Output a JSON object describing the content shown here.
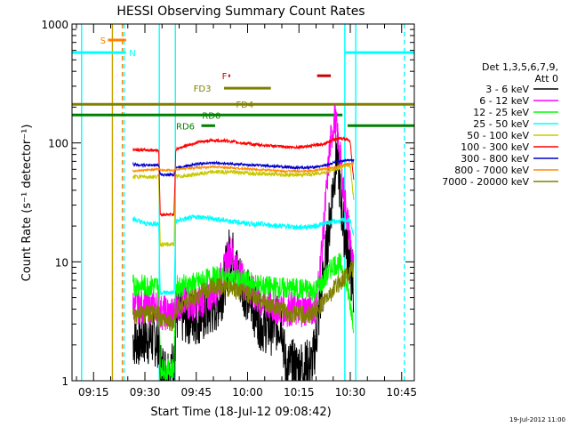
{
  "chart_data": {
    "type": "line",
    "title": "HESSI Observing Summary Count Rates",
    "xlabel": "Start Time (18-Jul-12 09:08:42)",
    "ylabel": "Count Rate (s⁻¹ detector⁻¹)",
    "yscale": "log",
    "ylim": [
      1,
      1000
    ],
    "xlim_minutes": [
      548.7,
      648.7
    ],
    "x_ticks": [
      {
        "label": "09:15",
        "min": 555
      },
      {
        "label": "09:30",
        "min": 570
      },
      {
        "label": "09:45",
        "min": 585
      },
      {
        "label": "10:00",
        "min": 600
      },
      {
        "label": "10:15",
        "min": 615
      },
      {
        "label": "10:30",
        "min": 630
      },
      {
        "label": "10:45",
        "min": 645
      }
    ],
    "y_ticks": [
      {
        "label": "1",
        "v": 1
      },
      {
        "label": "10",
        "v": 10
      },
      {
        "label": "100",
        "v": 100
      },
      {
        "label": "1000",
        "v": 1000
      }
    ],
    "legend_header": [
      "Det 1,3,5,6,7,9,",
      "Att 0"
    ],
    "legend_placement": "right",
    "series": [
      {
        "name": "3 - 6 keV",
        "color": "#000000",
        "points": [
          [
            566.5,
            2.3
          ],
          [
            567,
            2.2
          ],
          [
            570,
            2.3
          ],
          [
            574,
            2.2
          ],
          [
            574.5,
            1.3
          ],
          [
            576,
            1.2
          ],
          [
            578.5,
            1.3
          ],
          [
            579,
            3.5
          ],
          [
            585,
            3.4
          ],
          [
            588,
            3.6
          ],
          [
            591,
            4.4
          ],
          [
            593,
            6
          ],
          [
            594,
            9.5
          ],
          [
            595,
            13
          ],
          [
            596,
            10
          ],
          [
            597,
            8
          ],
          [
            599,
            6
          ],
          [
            602,
            4
          ],
          [
            604,
            3
          ],
          [
            607,
            2.8
          ],
          [
            610,
            3.2
          ],
          [
            611,
            1.3
          ],
          [
            617,
            1.3
          ],
          [
            619,
            1.4
          ],
          [
            620,
            2.3
          ],
          [
            621,
            4
          ],
          [
            622,
            7
          ],
          [
            623,
            12
          ],
          [
            624,
            22
          ],
          [
            625,
            45
          ],
          [
            626,
            80
          ],
          [
            626.5,
            68
          ],
          [
            627,
            38
          ],
          [
            628,
            20
          ],
          [
            629,
            14
          ],
          [
            630,
            9
          ],
          [
            631,
            5
          ]
        ]
      },
      {
        "name": "6 - 12 keV",
        "color": "#ff00ff",
        "points": [
          [
            566.5,
            4.2
          ],
          [
            570,
            4.2
          ],
          [
            574,
            4.2
          ],
          [
            574.5,
            3.8
          ],
          [
            578.5,
            3.6
          ],
          [
            579,
            4.5
          ],
          [
            585,
            4.5
          ],
          [
            588,
            5
          ],
          [
            591,
            6
          ],
          [
            593,
            8
          ],
          [
            594,
            10.5
          ],
          [
            595,
            12.5
          ],
          [
            596,
            10.5
          ],
          [
            597,
            8.5
          ],
          [
            600,
            6
          ],
          [
            604,
            4.6
          ],
          [
            608,
            4.2
          ],
          [
            611,
            4
          ],
          [
            617,
            4
          ],
          [
            620,
            4.2
          ],
          [
            621,
            8
          ],
          [
            622,
            16
          ],
          [
            623,
            38
          ],
          [
            624,
            90
          ],
          [
            625,
            140
          ],
          [
            625.5,
            160
          ],
          [
            626,
            130
          ],
          [
            627,
            80
          ],
          [
            628,
            40
          ],
          [
            629,
            25
          ],
          [
            630,
            15
          ],
          [
            631,
            8
          ]
        ]
      },
      {
        "name": "12 - 25 keV",
        "color": "#00ff00",
        "points": [
          [
            566.5,
            6.4
          ],
          [
            570,
            6.3
          ],
          [
            574,
            6.3
          ],
          [
            574.5,
            1.3
          ],
          [
            576,
            1.2
          ],
          [
            578.5,
            1.3
          ],
          [
            579,
            6.2
          ],
          [
            585,
            6.6
          ],
          [
            590,
            7.4
          ],
          [
            595,
            7.2
          ],
          [
            600,
            6.8
          ],
          [
            605,
            6.2
          ],
          [
            610,
            6
          ],
          [
            615,
            5.9
          ],
          [
            620,
            5.8
          ],
          [
            623,
            7.5
          ],
          [
            625,
            9.5
          ],
          [
            627,
            9.5
          ],
          [
            628,
            8.5
          ],
          [
            630,
            4.5
          ],
          [
            631,
            3
          ]
        ]
      },
      {
        "name": "25 - 50 keV",
        "color": "#00ffff",
        "points": [
          [
            566.5,
            23
          ],
          [
            570,
            21
          ],
          [
            574,
            21
          ],
          [
            574.5,
            5.5
          ],
          [
            578.5,
            5.5
          ],
          [
            579,
            22
          ],
          [
            582,
            23
          ],
          [
            586,
            24
          ],
          [
            590,
            23
          ],
          [
            595,
            22
          ],
          [
            600,
            21
          ],
          [
            605,
            20.5
          ],
          [
            610,
            20
          ],
          [
            615,
            19.5
          ],
          [
            620,
            20
          ],
          [
            624,
            21.5
          ],
          [
            627,
            22
          ],
          [
            629,
            22.5
          ],
          [
            630,
            22
          ],
          [
            631,
            16
          ]
        ]
      },
      {
        "name": "50 - 100 keV",
        "color": "#c8c800",
        "points": [
          [
            566.5,
            52
          ],
          [
            570,
            52
          ],
          [
            574,
            52
          ],
          [
            574.5,
            14
          ],
          [
            578.5,
            14
          ],
          [
            579,
            52
          ],
          [
            582,
            53
          ],
          [
            586,
            55
          ],
          [
            590,
            57
          ],
          [
            595,
            57
          ],
          [
            600,
            56
          ],
          [
            605,
            55
          ],
          [
            610,
            54
          ],
          [
            615,
            54
          ],
          [
            620,
            55
          ],
          [
            624,
            58
          ],
          [
            627,
            62
          ],
          [
            629,
            65
          ],
          [
            630,
            64
          ],
          [
            631,
            33
          ]
        ]
      },
      {
        "name": "100 - 300 keV",
        "color": "#ff0000",
        "points": [
          [
            566.5,
            88
          ],
          [
            570,
            87
          ],
          [
            574,
            87
          ],
          [
            574.5,
            25
          ],
          [
            578.5,
            25
          ],
          [
            579,
            88
          ],
          [
            582,
            95
          ],
          [
            586,
            102
          ],
          [
            590,
            105
          ],
          [
            594,
            104
          ],
          [
            598,
            100
          ],
          [
            602,
            97
          ],
          [
            606,
            95
          ],
          [
            610,
            93
          ],
          [
            614,
            92
          ],
          [
            618,
            94
          ],
          [
            622,
            98
          ],
          [
            625,
            106
          ],
          [
            627,
            110
          ],
          [
            629,
            108
          ],
          [
            630,
            100
          ],
          [
            631,
            48
          ]
        ]
      },
      {
        "name": "300 - 800 keV",
        "color": "#0000cc",
        "points": [
          [
            566.5,
            66
          ],
          [
            570,
            65
          ],
          [
            574,
            65
          ],
          [
            574.5,
            54
          ],
          [
            578.5,
            54
          ],
          [
            579,
            62
          ],
          [
            582,
            64
          ],
          [
            586,
            67
          ],
          [
            590,
            68
          ],
          [
            594,
            67
          ],
          [
            598,
            66
          ],
          [
            602,
            65
          ],
          [
            606,
            64
          ],
          [
            610,
            63
          ],
          [
            614,
            62
          ],
          [
            618,
            62
          ],
          [
            622,
            64
          ],
          [
            625,
            68
          ],
          [
            627,
            70
          ],
          [
            629,
            72
          ],
          [
            631,
            72
          ]
        ]
      },
      {
        "name": "800 - 7000 keV",
        "color": "#ff8c00",
        "points": [
          [
            566.5,
            58
          ],
          [
            570,
            59
          ],
          [
            574,
            60
          ],
          [
            574.5,
            59
          ],
          [
            578.5,
            59
          ],
          [
            579,
            60
          ],
          [
            582,
            61
          ],
          [
            586,
            62
          ],
          [
            590,
            63
          ],
          [
            594,
            62
          ],
          [
            598,
            61
          ],
          [
            602,
            60
          ],
          [
            606,
            59
          ],
          [
            610,
            58
          ],
          [
            614,
            58
          ],
          [
            618,
            58
          ],
          [
            622,
            60
          ],
          [
            625,
            62
          ],
          [
            627,
            64
          ],
          [
            629,
            66
          ],
          [
            631,
            67
          ]
        ]
      },
      {
        "name": "7000 - 20000 keV",
        "color": "#808000",
        "points": [
          [
            566.5,
            3.5
          ],
          [
            570,
            3.7
          ],
          [
            574,
            3.6
          ],
          [
            574.5,
            3.2
          ],
          [
            578.5,
            3.1
          ],
          [
            579,
            4
          ],
          [
            582,
            4.6
          ],
          [
            586,
            5.4
          ],
          [
            590,
            6.2
          ],
          [
            594,
            6.1
          ],
          [
            598,
            5.6
          ],
          [
            602,
            5
          ],
          [
            606,
            4.4
          ],
          [
            610,
            3.9
          ],
          [
            614,
            3.6
          ],
          [
            618,
            3.6
          ],
          [
            620,
            3.9
          ],
          [
            622,
            4.5
          ],
          [
            625,
            5.8
          ],
          [
            628,
            7.3
          ],
          [
            630,
            8.5
          ],
          [
            631,
            9
          ]
        ]
      }
    ],
    "vertical_lines": [
      {
        "min": 551.5,
        "color": "#00ffff",
        "style": "solid"
      },
      {
        "min": 560.5,
        "color": "#c8a000",
        "style": "solid"
      },
      {
        "min": 563.4,
        "color": "#ff8000",
        "style": "dashed"
      },
      {
        "min": 563.9,
        "color": "#00ffff",
        "style": "dashed"
      },
      {
        "min": 574.2,
        "color": "#00ffff",
        "style": "solid"
      },
      {
        "min": 578.9,
        "color": "#00ffff",
        "style": "solid"
      },
      {
        "min": 628.4,
        "color": "#00ffff",
        "style": "solid"
      },
      {
        "min": 631.6,
        "color": "#00ffff",
        "style": "solid"
      },
      {
        "min": 645.8,
        "color": "#00ffff",
        "style": "dashed"
      }
    ],
    "flag_bars": [
      {
        "label": "S",
        "label_min": 556.9,
        "label_color": "#ff8000",
        "y_level": 0.955,
        "color": "#ff8000",
        "ranges": [
          [
            559.2,
            564.5
          ]
        ]
      },
      {
        "label": "N",
        "label_min": 565.4,
        "label_color": "#00ffff",
        "y_level": 0.92,
        "color": "#00ffff",
        "ranges": [
          [
            548.7,
            564.5
          ],
          [
            628.4,
            648.7
          ]
        ]
      },
      {
        "label": "F",
        "label_min": 592.5,
        "label_color": "#cc0000",
        "y_level": 0.855,
        "color": "#cc0000",
        "ranges": [
          [
            594.4,
            594.9
          ],
          [
            620.3,
            624.3
          ]
        ]
      },
      {
        "label": "FD3",
        "label_min": 584.2,
        "label_color": "#808000",
        "y_level": 0.82,
        "color": "#808000",
        "ranges": [
          [
            593.1,
            606.8
          ]
        ]
      },
      {
        "label": "FD4",
        "label_min": 596.6,
        "label_color": "#808000",
        "y_level": 0.775,
        "color": "#808000",
        "ranges": [
          [
            548.7,
            648.7
          ]
        ]
      },
      {
        "label": "RD0",
        "label_min": 586.7,
        "label_color": "#008000",
        "y_level": 0.745,
        "color": "#008000",
        "ranges": [
          [
            548.7,
            627.7
          ]
        ]
      },
      {
        "label": "RD6",
        "label_min": 579.1,
        "label_color": "#008000",
        "y_level": 0.715,
        "color": "#008000",
        "ranges": [
          [
            586.5,
            590.5
          ],
          [
            629.2,
            648.7
          ]
        ]
      }
    ],
    "grid": false
  },
  "footer": {
    "date_stamp": "19-Jul-2012 11:00"
  }
}
